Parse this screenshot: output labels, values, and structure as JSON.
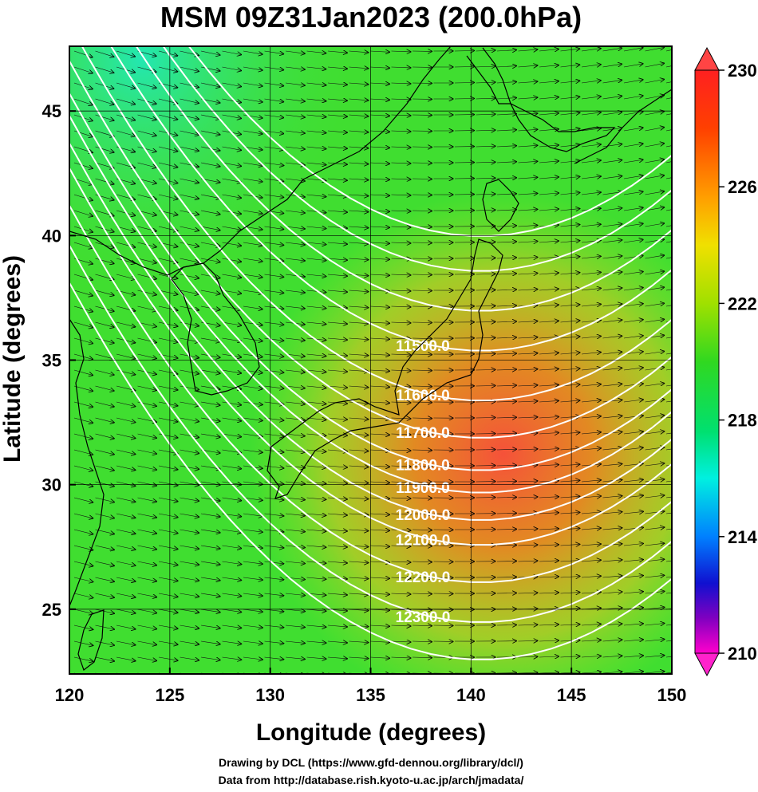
{
  "title": "MSM 09Z31Jan2023 (200.0hPa)",
  "axes": {
    "xlabel": "Longitude (degrees)",
    "ylabel": "Latitude  (degrees)",
    "xticks": [
      120,
      125,
      130,
      135,
      140,
      145,
      150
    ],
    "yticks": [
      25,
      30,
      35,
      40,
      45
    ],
    "xrange": [
      120,
      150
    ],
    "yrange": [
      22.4,
      47.6
    ]
  },
  "colorbar": {
    "ticks": [
      230,
      226,
      222,
      218,
      214,
      210
    ],
    "range": [
      210,
      230
    ],
    "colors": [
      "#ff00cc",
      "#8000c0",
      "#1010d0",
      "#0080ff",
      "#00f0e0",
      "#00e070",
      "#30d820",
      "#a0e000",
      "#f0e000",
      "#ffa000",
      "#ff4000",
      "#ff2020"
    ]
  },
  "contours": {
    "labels": [
      "11500.0",
      "11600.0",
      "11700.0",
      "11800.0",
      "11900.0",
      "12000.0",
      "12100.0",
      "12200.0",
      "12300.0"
    ],
    "label_lon": 137.6,
    "label_lats": [
      35.6,
      33.6,
      32.1,
      30.8,
      29.9,
      28.8,
      27.8,
      26.3,
      24.7
    ]
  },
  "credits": {
    "line1": "Drawing by DCL (https://www.gfd-dennou.org/library/dcl/)",
    "line2": "Data from http://database.rish.kyoto-u.ac.jp/arch/jmadata/"
  }
}
